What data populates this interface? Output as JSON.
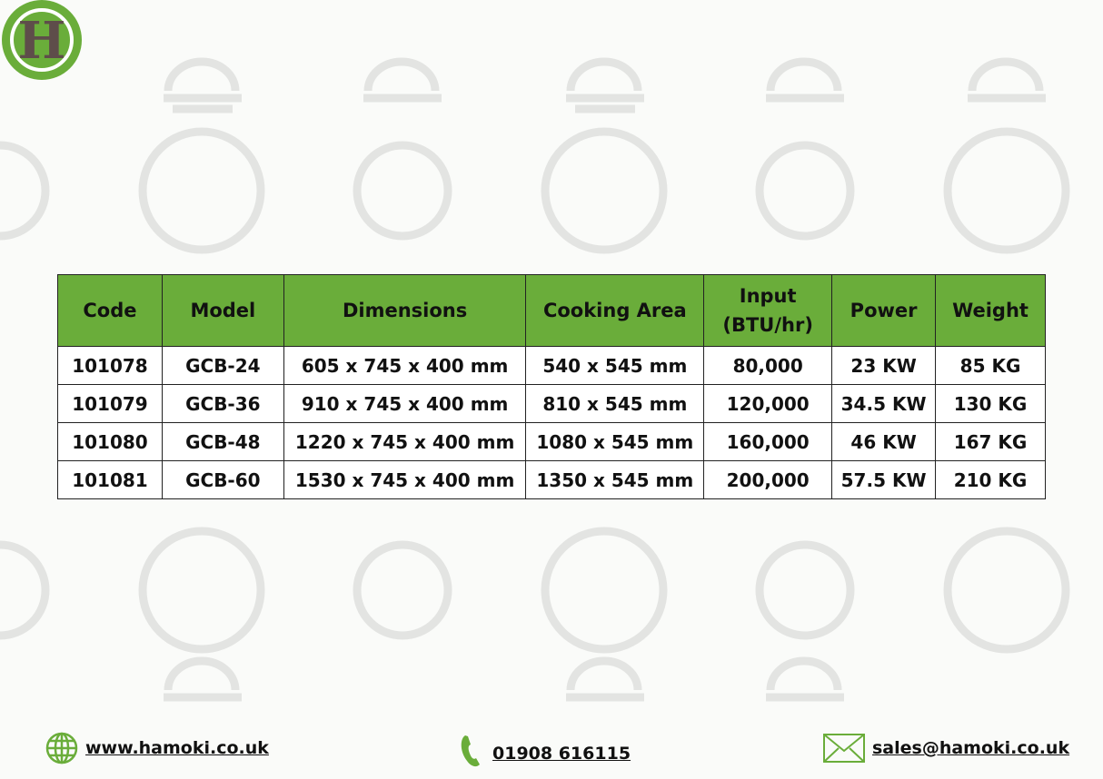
{
  "brand": {
    "logo_letter": "H",
    "accent": "#6aad3a",
    "logo_letter_color": "#5e4d4a"
  },
  "table": {
    "headers": [
      "Code",
      "Model",
      "Dimensions",
      "Cooking Area",
      "Input (BTU/hr)",
      "Power",
      "Weight"
    ],
    "rows": [
      [
        "101078",
        "GCB-24",
        "605 x 745 x 400 mm",
        "540 x 545 mm",
        "80,000",
        "23 KW",
        "85 KG"
      ],
      [
        "101079",
        "GCB-36",
        "910 x 745 x 400 mm",
        "810 x 545 mm",
        "120,000",
        "34.5 KW",
        "130 KG"
      ],
      [
        "101080",
        "GCB-48",
        "1220 x 745 x 400 mm",
        "1080 x 545 mm",
        "160,000",
        "46 KW",
        "167 KG"
      ],
      [
        "101081",
        "GCB-60",
        "1530 x 745 x 400 mm",
        "1350 x 545 mm",
        "200,000",
        "57.5 KW",
        "210 KG"
      ]
    ]
  },
  "footer": {
    "website": {
      "icon": "globe-icon",
      "text": "www.hamoki.co.uk"
    },
    "phone": {
      "icon": "phone-icon",
      "text": "01908 616115"
    },
    "email": {
      "icon": "envelope-icon",
      "text": "sales@hamoki.co.uk"
    }
  }
}
